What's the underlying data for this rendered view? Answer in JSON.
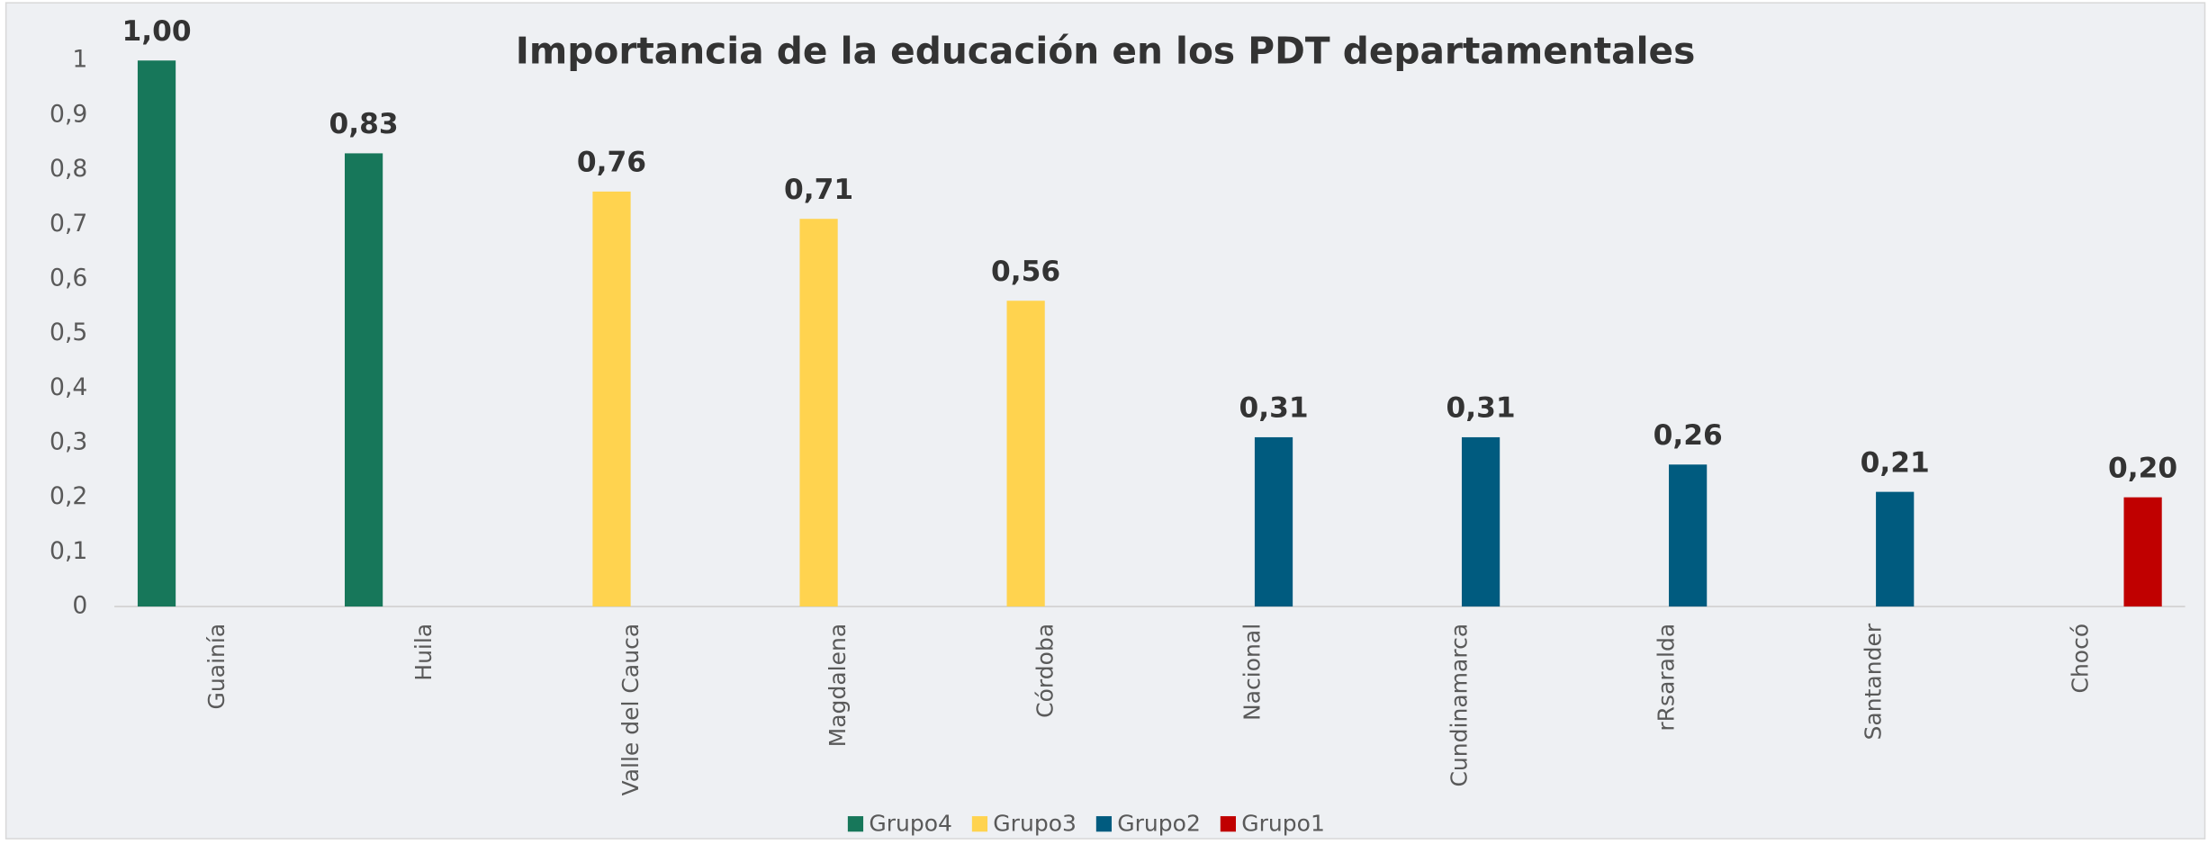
{
  "chart_data": {
    "type": "bar",
    "title": "Importancia de la educación en los PDT departamentales",
    "categories": [
      "Guainía",
      "Huila",
      "Valle del Cauca",
      "Magdalena",
      "Córdoba",
      "Nacional",
      "Cundinamarca",
      "rRsaralda",
      "Santander",
      "Chocó"
    ],
    "series": [
      {
        "name": "Grupo4",
        "color": "#17775a",
        "values": [
          1.0,
          0.83,
          null,
          null,
          null,
          null,
          null,
          null,
          null,
          null
        ],
        "value_labels": [
          "1,00",
          "0,83",
          null,
          null,
          null,
          null,
          null,
          null,
          null,
          null
        ]
      },
      {
        "name": "Grupo3",
        "color": "#ffd34f",
        "values": [
          null,
          null,
          0.76,
          0.71,
          0.56,
          null,
          null,
          null,
          null,
          null
        ],
        "value_labels": [
          null,
          null,
          "0,76",
          "0,71",
          "0,56",
          null,
          null,
          null,
          null,
          null
        ]
      },
      {
        "name": "Grupo2",
        "color": "#005b7f",
        "values": [
          null,
          null,
          null,
          null,
          null,
          0.31,
          0.31,
          0.26,
          0.21,
          null
        ],
        "value_labels": [
          null,
          null,
          null,
          null,
          null,
          "0,31",
          "0,31",
          "0,26",
          "0,21",
          null
        ]
      },
      {
        "name": "Grupo1",
        "color": "#c00000",
        "values": [
          null,
          null,
          null,
          null,
          null,
          null,
          null,
          null,
          null,
          0.2
        ],
        "value_labels": [
          null,
          null,
          null,
          null,
          null,
          null,
          null,
          null,
          null,
          "0,20"
        ]
      }
    ],
    "ylim": [
      0,
      1
    ],
    "yticks": [
      0,
      {
        "value": 0.1,
        "label": "0,1"
      },
      {
        "value": 0.2,
        "label": "0,2"
      },
      {
        "value": 0.3,
        "label": "0,3"
      },
      {
        "value": 0.4,
        "label": "0,4"
      },
      {
        "value": 0.5,
        "label": "0,5"
      },
      {
        "value": 0.6,
        "label": "0,6"
      },
      {
        "value": 0.7,
        "label": "0,7"
      },
      {
        "value": 0.8,
        "label": "0,8"
      },
      {
        "value": 0.9,
        "label": "0,9"
      },
      1
    ],
    "legend": "bottom"
  }
}
